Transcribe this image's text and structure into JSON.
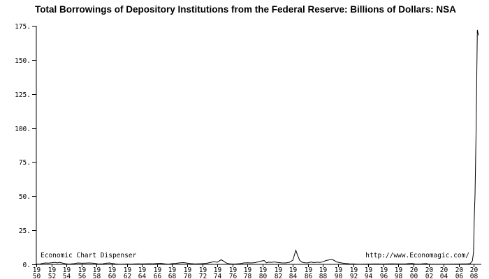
{
  "title": "Total Borrowings of Depository Institutions from the Federal Reserve: Billions of Dollars: NSA",
  "annotations": {
    "watermark_left": "Economic Chart Dispenser",
    "watermark_right": "http://www.Economagic.com/"
  },
  "chart_data": {
    "type": "line",
    "title": "Total Borrowings of Depository Institutions from the Federal Reserve: Billions of Dollars: NSA",
    "xlabel": "",
    "ylabel": "",
    "x_range": [
      1950,
      2009
    ],
    "ylim": [
      0,
      175
    ],
    "grid": false,
    "legend": "none",
    "line_color": "#000000",
    "axis_color": "#000000",
    "background": "#ffffff",
    "y_ticks": [
      0,
      25,
      50,
      75,
      100,
      125,
      150,
      175
    ],
    "y_tick_labels": [
      "0.",
      "25.",
      "50.",
      "75.",
      "100.",
      "125.",
      "150.",
      "175."
    ],
    "x_tick_years": [
      1950,
      1952,
      1954,
      1956,
      1958,
      1960,
      1962,
      1964,
      1966,
      1968,
      1970,
      1972,
      1974,
      1976,
      1978,
      1980,
      1982,
      1984,
      1986,
      1988,
      1990,
      1992,
      1994,
      1996,
      1998,
      2000,
      2002,
      2004,
      2006,
      2008
    ],
    "x_tick_labels": [
      [
        "19",
        "50"
      ],
      [
        "19",
        "52"
      ],
      [
        "19",
        "54"
      ],
      [
        "19",
        "56"
      ],
      [
        "19",
        "58"
      ],
      [
        "19",
        "60"
      ],
      [
        "19",
        "62"
      ],
      [
        "19",
        "64"
      ],
      [
        "19",
        "66"
      ],
      [
        "19",
        "68"
      ],
      [
        "19",
        "70"
      ],
      [
        "19",
        "72"
      ],
      [
        "19",
        "74"
      ],
      [
        "19",
        "76"
      ],
      [
        "19",
        "78"
      ],
      [
        "19",
        "80"
      ],
      [
        "19",
        "82"
      ],
      [
        "19",
        "84"
      ],
      [
        "19",
        "86"
      ],
      [
        "19",
        "88"
      ],
      [
        "19",
        "90"
      ],
      [
        "19",
        "92"
      ],
      [
        "19",
        "94"
      ],
      [
        "19",
        "96"
      ],
      [
        "19",
        "98"
      ],
      [
        "20",
        "00"
      ],
      [
        "20",
        "02"
      ],
      [
        "20",
        "04"
      ],
      [
        "20",
        "06"
      ],
      [
        "20",
        "08"
      ]
    ],
    "series": [
      {
        "points": [
          [
            1950.0,
            0.3
          ],
          [
            1950.4,
            0.15
          ],
          [
            1950.8,
            0.6
          ],
          [
            1951.2,
            1.0
          ],
          [
            1951.6,
            0.9
          ],
          [
            1952.0,
            1.2
          ],
          [
            1952.4,
            1.5
          ],
          [
            1952.8,
            1.1
          ],
          [
            1953.1,
            1.5
          ],
          [
            1953.4,
            1.0
          ],
          [
            1953.8,
            0.5
          ],
          [
            1954.3,
            0.2
          ],
          [
            1955.0,
            0.5
          ],
          [
            1955.5,
            1.0
          ],
          [
            1956.0,
            0.8
          ],
          [
            1956.5,
            0.9
          ],
          [
            1957.0,
            1.0
          ],
          [
            1957.4,
            0.9
          ],
          [
            1957.8,
            0.7
          ],
          [
            1958.2,
            0.25
          ],
          [
            1958.8,
            0.4
          ],
          [
            1959.3,
            0.8
          ],
          [
            1959.7,
            1.0
          ],
          [
            1960.0,
            0.7
          ],
          [
            1960.5,
            0.3
          ],
          [
            1961.0,
            0.15
          ],
          [
            1961.5,
            0.1
          ],
          [
            1962.0,
            0.3
          ],
          [
            1962.5,
            0.2
          ],
          [
            1963.0,
            0.3
          ],
          [
            1963.5,
            0.35
          ],
          [
            1964.0,
            0.3
          ],
          [
            1964.5,
            0.4
          ],
          [
            1965.0,
            0.45
          ],
          [
            1965.5,
            0.4
          ],
          [
            1966.0,
            0.6
          ],
          [
            1966.5,
            0.75
          ],
          [
            1967.0,
            0.35
          ],
          [
            1967.5,
            0.15
          ],
          [
            1968.0,
            0.5
          ],
          [
            1968.5,
            0.7
          ],
          [
            1969.0,
            1.1
          ],
          [
            1969.5,
            1.3
          ],
          [
            1970.0,
            0.9
          ],
          [
            1970.5,
            0.5
          ],
          [
            1971.0,
            0.3
          ],
          [
            1971.5,
            0.4
          ],
          [
            1972.0,
            0.5
          ],
          [
            1972.5,
            0.7
          ],
          [
            1973.0,
            1.3
          ],
          [
            1973.5,
            1.9
          ],
          [
            1974.0,
            1.6
          ],
          [
            1974.5,
            3.4
          ],
          [
            1974.8,
            2.4
          ],
          [
            1975.2,
            0.9
          ],
          [
            1975.6,
            0.4
          ],
          [
            1976.0,
            0.25
          ],
          [
            1976.5,
            0.3
          ],
          [
            1977.0,
            0.5
          ],
          [
            1977.5,
            1.0
          ],
          [
            1978.0,
            1.2
          ],
          [
            1978.5,
            1.0
          ],
          [
            1979.0,
            1.3
          ],
          [
            1979.5,
            2.0
          ],
          [
            1980.0,
            2.6
          ],
          [
            1980.2,
            2.8
          ],
          [
            1980.5,
            1.2
          ],
          [
            1980.8,
            1.6
          ],
          [
            1981.2,
            1.5
          ],
          [
            1981.5,
            1.8
          ],
          [
            1982.0,
            1.4
          ],
          [
            1982.5,
            1.1
          ],
          [
            1983.0,
            1.0
          ],
          [
            1983.5,
            1.4
          ],
          [
            1984.0,
            3.0
          ],
          [
            1984.4,
            10.3
          ],
          [
            1984.6,
            7.0
          ],
          [
            1984.9,
            3.0
          ],
          [
            1985.2,
            1.6
          ],
          [
            1985.6,
            1.2
          ],
          [
            1986.0,
            1.1
          ],
          [
            1986.4,
            1.7
          ],
          [
            1986.8,
            1.3
          ],
          [
            1987.2,
            1.6
          ],
          [
            1987.6,
            1.4
          ],
          [
            1988.0,
            1.9
          ],
          [
            1988.4,
            2.8
          ],
          [
            1988.8,
            3.3
          ],
          [
            1989.2,
            3.6
          ],
          [
            1989.5,
            2.8
          ],
          [
            1989.8,
            1.8
          ],
          [
            1990.2,
            1.3
          ],
          [
            1990.6,
            0.9
          ],
          [
            1991.0,
            0.6
          ],
          [
            1991.5,
            0.4
          ],
          [
            1992.0,
            0.3
          ],
          [
            1992.5,
            0.2
          ],
          [
            1993.0,
            0.15
          ],
          [
            1994.0,
            0.25
          ],
          [
            1995.0,
            0.3
          ],
          [
            1996.0,
            0.25
          ],
          [
            1997.0,
            0.35
          ],
          [
            1998.0,
            0.3
          ],
          [
            1999.0,
            0.35
          ],
          [
            1999.8,
            0.7
          ],
          [
            2000.2,
            0.25
          ],
          [
            2001.0,
            0.3
          ],
          [
            2001.7,
            0.55
          ],
          [
            2002.0,
            0.2
          ],
          [
            2003.0,
            0.15
          ],
          [
            2004.0,
            0.15
          ],
          [
            2005.0,
            0.2
          ],
          [
            2006.0,
            0.25
          ],
          [
            2006.5,
            0.3
          ],
          [
            2007.0,
            0.3
          ],
          [
            2007.5,
            0.5
          ],
          [
            2007.8,
            2.5
          ],
          [
            2007.95,
            9
          ],
          [
            2008.05,
            34
          ],
          [
            2008.15,
            51
          ],
          [
            2008.3,
            100
          ],
          [
            2008.45,
            172
          ],
          [
            2008.6,
            168
          ]
        ]
      }
    ]
  },
  "layout_values": {
    "peak_value_shown": "172",
    "y_axis_max_label": "175.",
    "y_axis_min_label": "0."
  }
}
